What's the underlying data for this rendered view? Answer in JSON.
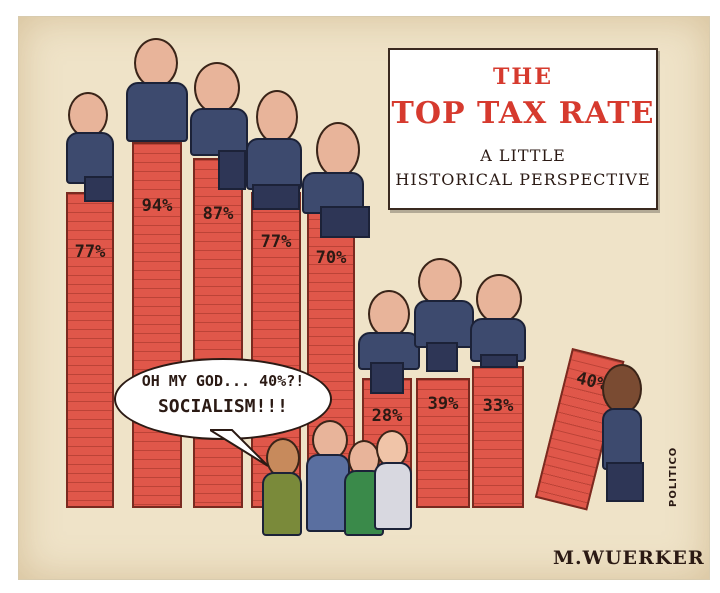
{
  "title": {
    "line1": "THE",
    "line2": "TOP TAX RATE",
    "line3": "A LITTLE",
    "line4": "HISTORICAL PERSPECTIVE"
  },
  "bars": [
    {
      "label": "77%",
      "value": 77
    },
    {
      "label": "94%",
      "value": 94
    },
    {
      "label": "87%",
      "value": 87
    },
    {
      "label": "77%",
      "value": 77
    },
    {
      "label": "70%",
      "value": 70
    },
    {
      "label": "28%",
      "value": 28
    },
    {
      "label": "39%",
      "value": 39
    },
    {
      "label": "33%",
      "value": 33
    },
    {
      "label": "40%",
      "value": 40
    }
  ],
  "speech_bubble": {
    "line1": "OH MY GOD... 40%?!",
    "line2": "SOCIALISM!!!"
  },
  "signature": "M.WUERKER",
  "publication": "POLITICO",
  "colors": {
    "bar": "#e0574a",
    "title_red": "#d63a2e",
    "paper": "#efe3c8"
  }
}
